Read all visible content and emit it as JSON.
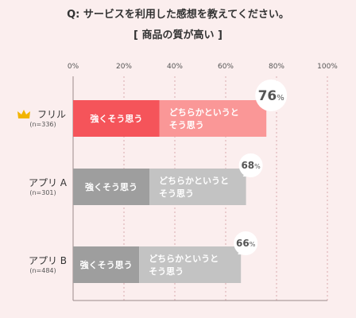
{
  "title_line1": "Q: サービスを利用した感想を教えてください。",
  "title_line2": "[ 商品の質が高い ]",
  "chart_data": {
    "type": "bar",
    "orientation": "horizontal",
    "stacked": true,
    "xlim": [
      0,
      100
    ],
    "x_ticks": [
      "0%",
      "20%",
      "40%",
      "60%",
      "80%",
      "100%"
    ],
    "grid": "vertical-dotted",
    "categories": [
      {
        "name": "フリル",
        "sub": "(n=336)",
        "total_num": "76",
        "total_unit": "%",
        "highlight": true
      },
      {
        "name": "アプリ A",
        "sub": "(n=301)",
        "total_num": "68",
        "total_unit": "%",
        "highlight": false
      },
      {
        "name": "アプリ B",
        "sub": "(n=484)",
        "total_num": "66",
        "total_unit": "%",
        "highlight": false
      }
    ],
    "series": [
      {
        "name": "強くそう思う",
        "label_lines": [
          "強くそう思う"
        ],
        "values": [
          34,
          30,
          26
        ]
      },
      {
        "name": "どちらかというとそう思う",
        "label_lines": [
          "どちらかというと",
          "そう思う"
        ],
        "values": [
          42,
          38,
          40
        ]
      }
    ],
    "colors": {
      "highlight_strong": "#f5545a",
      "highlight_weak": "#fa9797",
      "strong": "#9e9e9e",
      "weak": "#c3c3c3",
      "highlight_total_text": "#f0505a",
      "crown": "#f2b400"
    }
  }
}
